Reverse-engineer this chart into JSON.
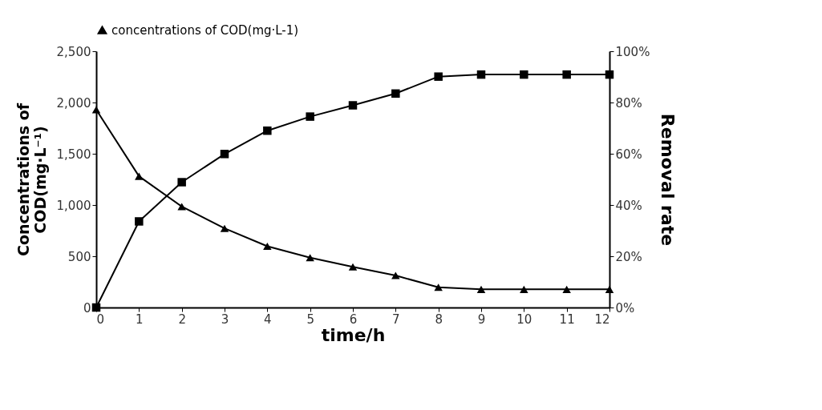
{
  "chart_data": {
    "type": "line",
    "xlabel": "time/h",
    "ylabel": "Concentrations of\nCOD(mg·L⁻¹)",
    "y2label": "Removal rate",
    "x": [
      0,
      1,
      2,
      3,
      4,
      5,
      6,
      7,
      8,
      9,
      10,
      11,
      12
    ],
    "series": [
      {
        "name": "concentrations of COD(mg·L-1)",
        "color": "#000000",
        "marker": "triangle",
        "values": [
          1930,
          1280,
          985,
          772,
          598,
          486,
          397,
          312,
          197,
          177,
          177,
          177,
          177
        ]
      },
      {
        "color": "#000000",
        "marker": "square",
        "axis": "y2",
        "values": [
          0,
          33.6,
          48.9,
          59.9,
          69.0,
          74.5,
          78.9,
          83.5,
          90.1,
          90.9,
          90.9,
          90.9,
          90.9
        ]
      }
    ],
    "xlim": [
      0,
      12
    ],
    "xticks": [
      0,
      1,
      2,
      3,
      4,
      5,
      6,
      7,
      8,
      9,
      10,
      11,
      12
    ],
    "ylim": [
      0,
      2500
    ],
    "yticks": [
      {
        "value": 0,
        "label": "0"
      },
      {
        "value": 500,
        "label": "500"
      },
      {
        "value": 1000,
        "label": "1,000"
      },
      {
        "value": 1500,
        "label": "1,500"
      },
      {
        "value": 2000,
        "label": "2,000"
      },
      {
        "value": 2500,
        "label": "2,500"
      }
    ],
    "y2lim": [
      0,
      100
    ],
    "y2ticks": [
      {
        "value": 0,
        "label": "0%"
      },
      {
        "value": 20,
        "label": "20%"
      },
      {
        "value": 40,
        "label": "40%"
      },
      {
        "value": 60,
        "label": "60%"
      },
      {
        "value": 80,
        "label": "80%"
      },
      {
        "value": 100,
        "label": "100%"
      }
    ],
    "grid": false,
    "legend": "top",
    "line_style": "solid"
  }
}
